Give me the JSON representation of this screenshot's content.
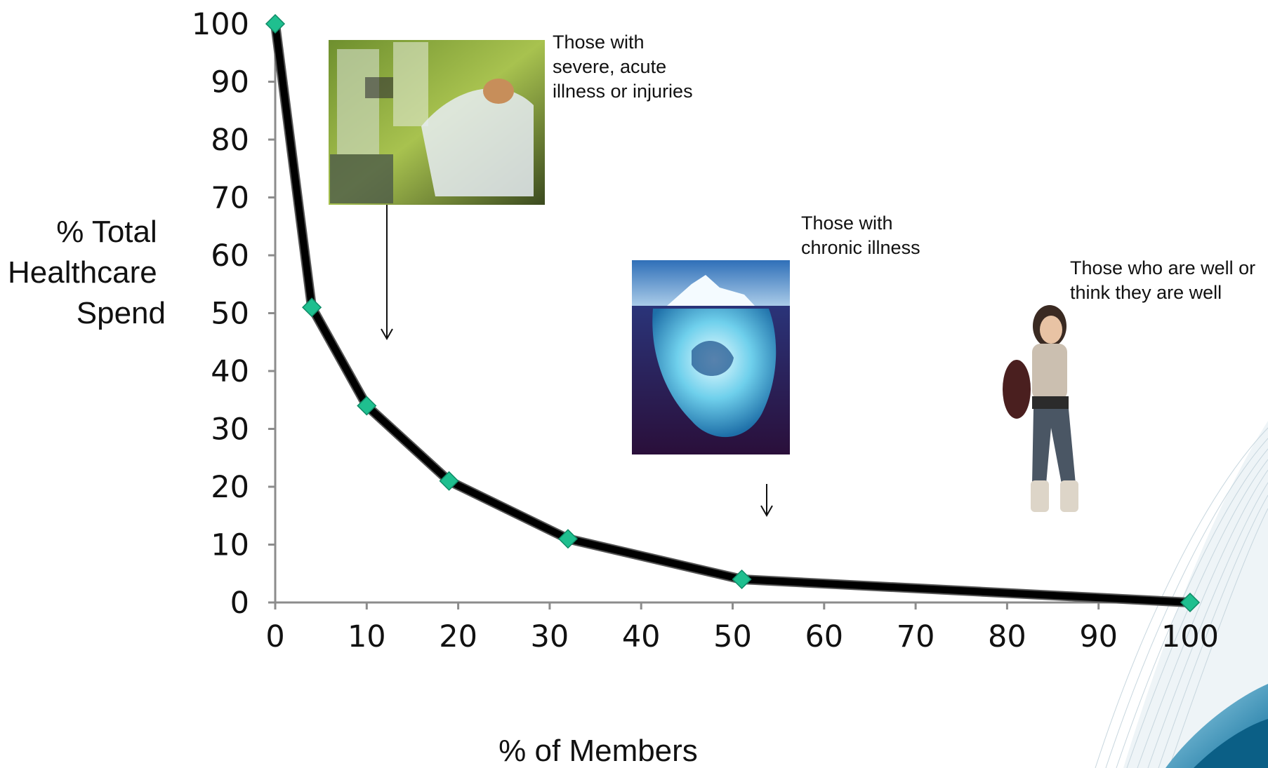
{
  "chart_data": {
    "type": "line",
    "x": [
      0,
      4,
      10,
      19,
      32,
      51,
      100
    ],
    "y": [
      100,
      51,
      34,
      21,
      11,
      4,
      0
    ],
    "xlabel": "% of Members",
    "ylabel_lines": [
      "% Total",
      "Healthcare",
      "Spend"
    ],
    "xlim": [
      0,
      100
    ],
    "ylim": [
      0,
      100
    ],
    "x_ticks": [
      "0",
      "10",
      "20",
      "30",
      "40",
      "50",
      "60",
      "70",
      "80",
      "90",
      "100"
    ],
    "y_ticks": [
      "0",
      "10",
      "20",
      "30",
      "40",
      "50",
      "60",
      "70",
      "80",
      "90",
      "100"
    ],
    "grid": false,
    "legend": "none",
    "line_color": "#000000",
    "marker_color": "#1fbf8f",
    "axis_color": "#8c8c8c",
    "annotations": [
      {
        "lines": [
          "Those with",
          "severe, acute",
          "illness or injuries"
        ],
        "image": "icu-patient-photo"
      },
      {
        "lines": [
          "Those with",
          "chronic illness"
        ],
        "image": "iceberg-photo"
      },
      {
        "lines": [
          "Those who are well or",
          "think they are well"
        ],
        "image": "woman-on-phone-photo"
      }
    ]
  }
}
